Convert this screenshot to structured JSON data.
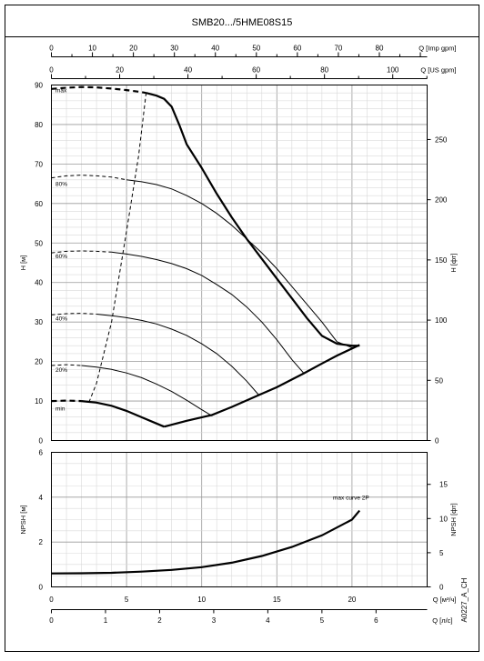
{
  "title": "SMB20.../5HME08S15",
  "code": "A0227_A_CH",
  "chart_data": [
    {
      "type": "line",
      "name": "head",
      "top_axes": [
        {
          "label": "Q [Imp gpm]",
          "ticks": [
            "0",
            "10",
            "20",
            "30",
            "40",
            "50",
            "60",
            "70",
            "80"
          ]
        },
        {
          "label": "Q [US gpm]",
          "ticks": [
            "0",
            "20",
            "40",
            "60",
            "80",
            "100"
          ]
        }
      ],
      "ylabel": "H [м]",
      "ylabel_right": "H [фт]",
      "ylim": [
        0,
        90
      ],
      "yticks": [
        "0",
        "10",
        "20",
        "30",
        "40",
        "50",
        "60",
        "70",
        "80",
        "90"
      ],
      "yticks_right": [
        "0",
        "50",
        "100",
        "150",
        "200",
        "250"
      ],
      "xlim": [
        0,
        25
      ],
      "series": [
        {
          "name": "max",
          "style": "bold",
          "x": [
            6.3,
            7.0,
            7.5,
            8.0,
            8.5,
            9.0,
            10.0,
            11.0,
            12.0,
            13.0,
            14.0,
            15.0,
            16.0,
            17.0,
            18.0,
            19.0,
            20.0,
            20.5
          ],
          "y": [
            88,
            87.3,
            86.5,
            84.5,
            80,
            75,
            69,
            62.5,
            56.5,
            51,
            46,
            41,
            36,
            31,
            26.5,
            24.5,
            24,
            24
          ]
        },
        {
          "name": "max-dash",
          "style": "dash-bold",
          "x": [
            0,
            1,
            2,
            3,
            4,
            5,
            6,
            6.3
          ],
          "y": [
            89,
            89.3,
            89.5,
            89.4,
            89.1,
            88.7,
            88.2,
            88
          ]
        },
        {
          "name": "80%",
          "style": "thin",
          "x": [
            5,
            6,
            7,
            8,
            9,
            10,
            11,
            12,
            13,
            14,
            15,
            16,
            17,
            18,
            19,
            20,
            20.5
          ],
          "y": [
            66,
            65.5,
            64.8,
            63.7,
            62,
            60,
            57.5,
            54.5,
            51,
            47.5,
            43.5,
            39,
            34.5,
            30,
            25,
            23.5,
            24
          ]
        },
        {
          "name": "80%-dash",
          "style": "dash",
          "x": [
            0,
            1,
            2,
            3,
            4,
            5
          ],
          "y": [
            66.5,
            67,
            67.2,
            67,
            66.7,
            66
          ]
        },
        {
          "name": "60%",
          "style": "thin",
          "x": [
            4,
            5,
            6,
            7,
            8,
            9,
            10,
            11,
            12,
            13,
            14,
            15,
            16,
            16.8
          ],
          "y": [
            47.7,
            47.2,
            46.6,
            45.8,
            44.8,
            43.5,
            41.8,
            39.5,
            37,
            33.8,
            30,
            25.5,
            20.5,
            17
          ]
        },
        {
          "name": "60%-dash",
          "style": "dash",
          "x": [
            0,
            1,
            2,
            3,
            4
          ],
          "y": [
            47.5,
            47.9,
            48,
            47.9,
            47.7
          ]
        },
        {
          "name": "40%",
          "style": "thin",
          "x": [
            3,
            4,
            5,
            6,
            7,
            8,
            9,
            10,
            11,
            12,
            13,
            13.8
          ],
          "y": [
            32,
            31.6,
            31.1,
            30.4,
            29.5,
            28.2,
            26.6,
            24.5,
            22,
            18.8,
            15,
            11.5
          ]
        },
        {
          "name": "40%-dash",
          "style": "dash",
          "x": [
            0,
            1,
            2,
            3
          ],
          "y": [
            31.8,
            32.1,
            32.2,
            32
          ]
        },
        {
          "name": "20%",
          "style": "thin",
          "x": [
            2,
            3,
            4,
            5,
            6,
            7,
            8,
            9,
            10,
            10.7
          ],
          "y": [
            19,
            18.6,
            18,
            17.1,
            15.9,
            14.3,
            12.4,
            10.2,
            7.8,
            6.2
          ]
        },
        {
          "name": "20%-dash",
          "style": "dash",
          "x": [
            0,
            1,
            2
          ],
          "y": [
            19,
            19.2,
            19
          ]
        },
        {
          "name": "min",
          "style": "bold",
          "x": [
            2,
            3,
            4,
            5,
            6,
            7,
            7.5
          ],
          "y": [
            10,
            9.6,
            8.8,
            7.5,
            5.9,
            4.3,
            3.5
          ]
        },
        {
          "name": "min-dash",
          "style": "dash-bold",
          "x": [
            0,
            1,
            2
          ],
          "y": [
            10,
            10.1,
            10
          ]
        },
        {
          "name": "system-right",
          "style": "bold",
          "x": [
            7.5,
            9,
            10.7,
            12,
            13.8,
            15,
            16.8,
            18,
            19,
            20.5
          ],
          "y": [
            3.5,
            5,
            6.5,
            8.5,
            11.5,
            13.5,
            17,
            19.5,
            21.5,
            24.2
          ]
        },
        {
          "name": "min-flow",
          "style": "dash",
          "x": [
            2.5,
            3,
            4,
            5,
            5.8,
            6.3
          ],
          "y": [
            9.7,
            14.5,
            30,
            53,
            72,
            88
          ]
        }
      ],
      "curve_labels": [
        "max",
        "80%",
        "60%",
        "40%",
        "20%",
        "min"
      ]
    },
    {
      "type": "line",
      "name": "npsh",
      "ylabel": "NPSH [м]",
      "ylabel_right": "NPSH [фт]",
      "ylim": [
        0,
        6
      ],
      "yticks": [
        "0",
        "2",
        "4",
        "6"
      ],
      "yticks_right": [
        "0",
        "5",
        "10",
        "15"
      ],
      "xlabel": "Q [м³/ч]",
      "xticks": [
        "0",
        "5",
        "10",
        "15",
        "20"
      ],
      "xlabel2": "Q [л/с]",
      "xticks2": [
        "0",
        "1",
        "2",
        "3",
        "4",
        "5",
        "6"
      ],
      "xlim": [
        0,
        25
      ],
      "series": [
        {
          "name": "max curve 2P",
          "x": [
            0,
            2,
            4,
            6,
            8,
            10,
            12,
            14,
            16,
            18,
            20,
            20.5
          ],
          "y": [
            0.6,
            0.61,
            0.63,
            0.68,
            0.76,
            0.88,
            1.08,
            1.38,
            1.78,
            2.3,
            3.0,
            3.4
          ]
        }
      ]
    }
  ]
}
